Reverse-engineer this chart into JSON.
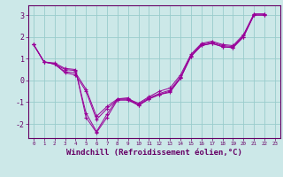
{
  "xlabel": "Windchill (Refroidissement éolien,°C)",
  "bg_color": "#cce8e8",
  "line_color": "#990099",
  "grid_color": "#99cccc",
  "axis_color": "#660066",
  "series": [
    [
      1.65,
      0.85,
      0.75,
      0.4,
      0.35,
      -0.4,
      -1.65,
      -1.2,
      -0.85,
      -0.8,
      -1.15,
      -0.85,
      -0.65,
      -0.55,
      0.1,
      1.1,
      1.6,
      1.7,
      1.55,
      1.5,
      2.0,
      3.0,
      3.0
    ],
    [
      1.65,
      0.85,
      0.75,
      0.35,
      0.25,
      -0.5,
      -1.8,
      -1.3,
      -0.9,
      -0.9,
      -1.1,
      -0.8,
      -0.6,
      -0.45,
      0.15,
      1.15,
      1.65,
      1.75,
      1.6,
      1.55,
      2.05,
      3.05,
      3.05
    ],
    [
      1.65,
      0.85,
      0.75,
      0.5,
      0.45,
      -1.5,
      -2.35,
      -1.55,
      -0.85,
      -0.85,
      -1.05,
      -0.75,
      -0.5,
      -0.35,
      0.25,
      1.2,
      1.7,
      1.8,
      1.65,
      1.6,
      2.1,
      3.05,
      3.05
    ],
    [
      1.65,
      0.85,
      0.8,
      0.55,
      0.5,
      -1.7,
      -2.4,
      -1.7,
      -0.9,
      -0.9,
      -1.15,
      -0.85,
      -0.65,
      -0.5,
      0.1,
      1.1,
      1.6,
      1.7,
      1.55,
      1.5,
      2.0,
      3.0,
      3.0
    ]
  ],
  "xlim": [
    -0.5,
    23.5
  ],
  "ylim": [
    -2.65,
    3.45
  ],
  "xticks": [
    0,
    1,
    2,
    3,
    4,
    5,
    6,
    7,
    8,
    9,
    10,
    11,
    12,
    13,
    14,
    15,
    16,
    17,
    18,
    19,
    20,
    21,
    22,
    23
  ],
  "yticks": [
    -2,
    -1,
    0,
    1,
    2,
    3
  ],
  "xlabel_fontsize": 6.5
}
